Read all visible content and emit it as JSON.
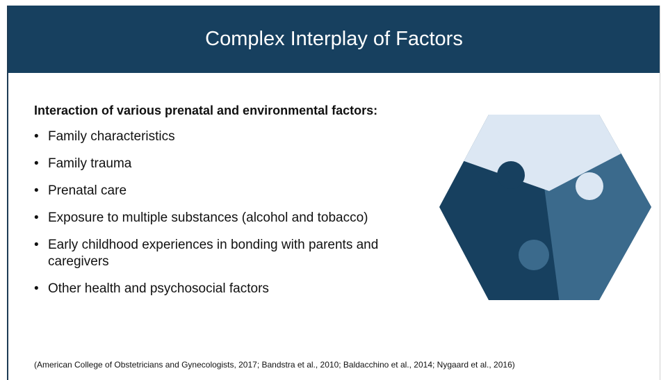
{
  "header": {
    "title": "Complex Interplay of Factors"
  },
  "body": {
    "heading": "Interaction of various prenatal and environmental factors:",
    "bullets": [
      "Family characteristics",
      "Family trauma",
      "Prenatal care",
      "Exposure to multiple substances (alcohol and tobacco)",
      "Early childhood experiences in bonding with parents and caregivers",
      "Other health and psychosocial factors"
    ]
  },
  "citation": "(American College of Obstetricians and Gynecologists, 2017; Bandstra et al., 2010; Baldacchino et al., 2014; Nygaard et al., 2016)"
}
